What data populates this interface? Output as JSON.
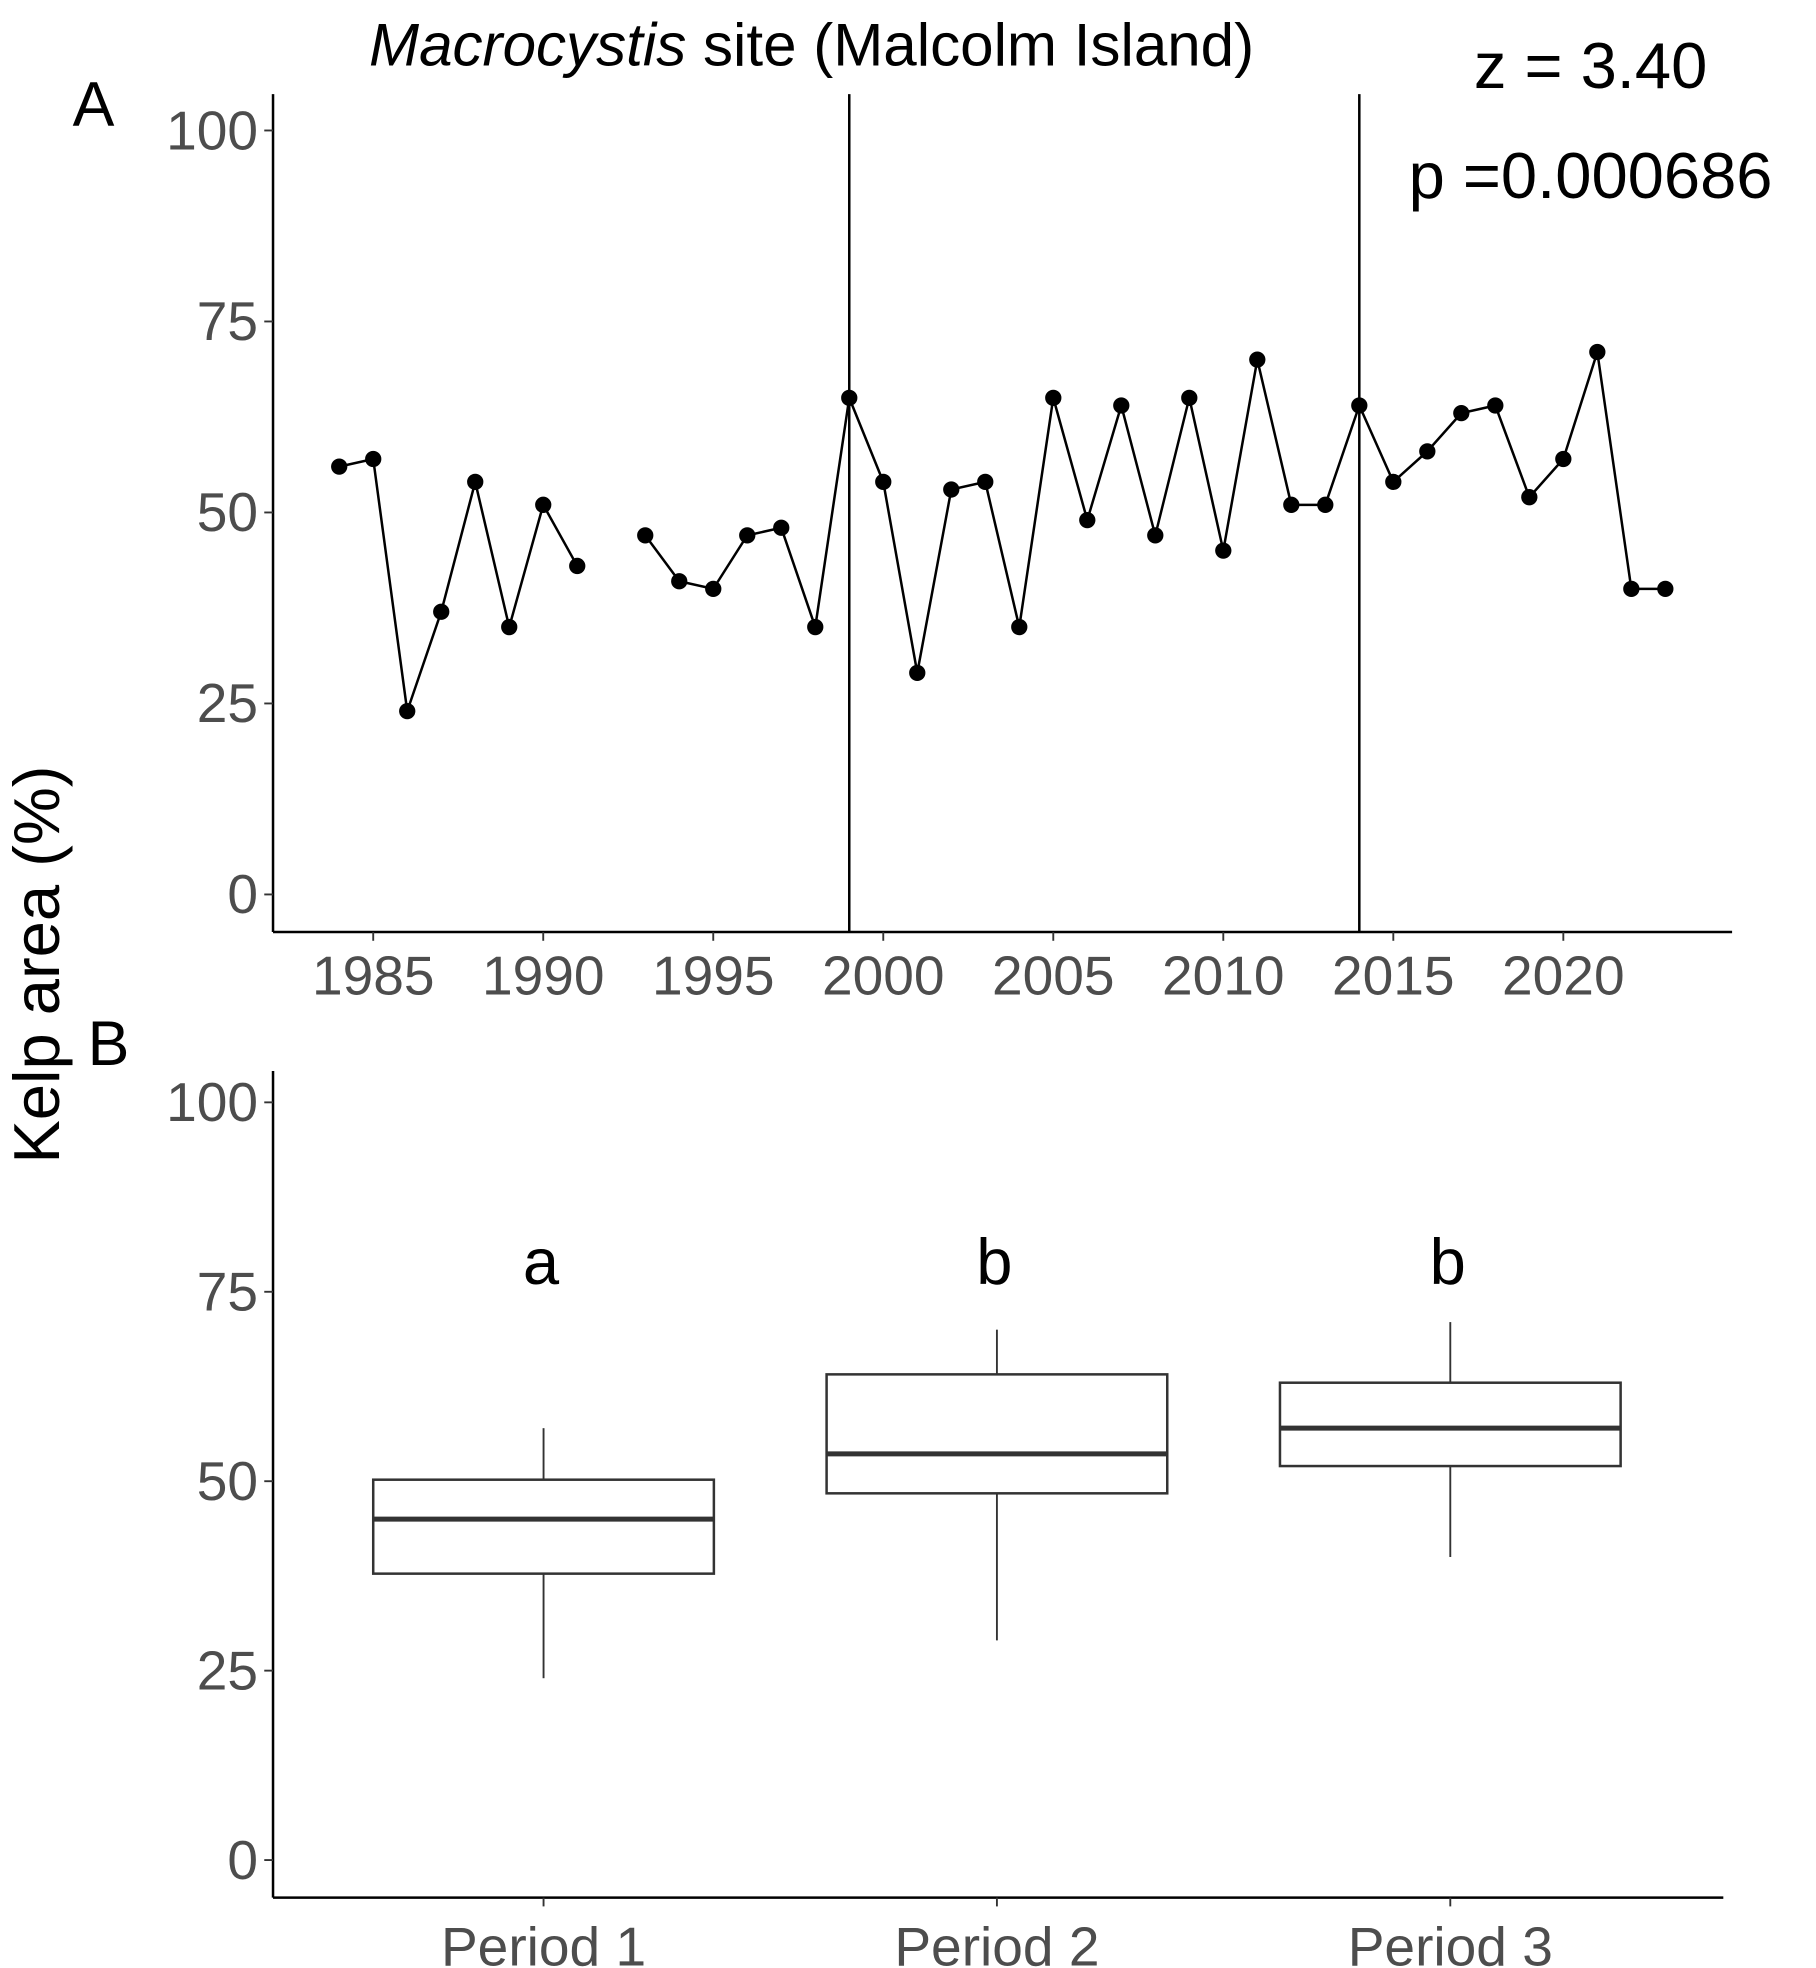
{
  "title": {
    "italic": "Macrocystis",
    "rest": " site (Malcolm Island)"
  },
  "y_axis_label": "Kelp area (%)",
  "panel_labels": {
    "top": "A",
    "bottom": "B"
  },
  "stats": {
    "z": "z = 3.40",
    "p": "p =0.000686"
  },
  "colors": {
    "line": "#000000",
    "point": "#000000",
    "box": "#333333",
    "axis": "#000000",
    "tick_text": "#4d4d4d"
  },
  "chart_data": [
    {
      "type": "line",
      "panel": "A",
      "title": "Macrocystis site (Malcolm Island)",
      "xlabel": "",
      "ylabel": "Kelp area (%)",
      "ylim": [
        0,
        100
      ],
      "yticks": [
        0,
        25,
        50,
        75,
        100
      ],
      "xticks": [
        1985,
        1990,
        1995,
        2000,
        2005,
        2010,
        2015,
        2020
      ],
      "grid": false,
      "vlines": [
        1999,
        2014
      ],
      "annotations": [
        "z = 3.40",
        "p =0.000686"
      ],
      "x": [
        1984,
        1985,
        1986,
        1987,
        1988,
        1989,
        1990,
        1991,
        1992,
        1993,
        1994,
        1995,
        1996,
        1997,
        1998,
        1999,
        2000,
        2001,
        2002,
        2003,
        2004,
        2005,
        2006,
        2007,
        2008,
        2009,
        2010,
        2011,
        2012,
        2013,
        2014,
        2015,
        2016,
        2017,
        2018,
        2019,
        2020,
        2021,
        2022,
        2023
      ],
      "values": [
        56,
        57,
        24,
        37,
        54,
        35,
        51,
        43,
        null,
        47,
        41,
        40,
        47,
        48,
        35,
        65,
        54,
        29,
        53,
        54,
        35,
        65,
        49,
        64,
        47,
        65,
        45,
        70,
        51,
        51,
        64,
        54,
        58,
        63,
        64,
        52,
        57,
        71,
        40,
        40
      ]
    },
    {
      "type": "box",
      "panel": "B",
      "ylabel": "Kelp area (%)",
      "ylim": [
        0,
        100
      ],
      "yticks": [
        0,
        25,
        50,
        75,
        100
      ],
      "grid": false,
      "categories": [
        "Period 1",
        "Period 2",
        "Period 3"
      ],
      "boxes": [
        {
          "label": "Period 1",
          "whisker_low": 24,
          "q1": 37.8,
          "median": 45,
          "q3": 50.2,
          "whisker_high": 57,
          "group": "a"
        },
        {
          "label": "Period 2",
          "whisker_low": 29,
          "q1": 48.4,
          "median": 53.6,
          "q3": 64.1,
          "whisker_high": 70,
          "group": "b"
        },
        {
          "label": "Period 3",
          "whisker_low": 40,
          "q1": 52,
          "median": 57,
          "q3": 63,
          "whisker_high": 71,
          "group": "b"
        }
      ]
    }
  ]
}
